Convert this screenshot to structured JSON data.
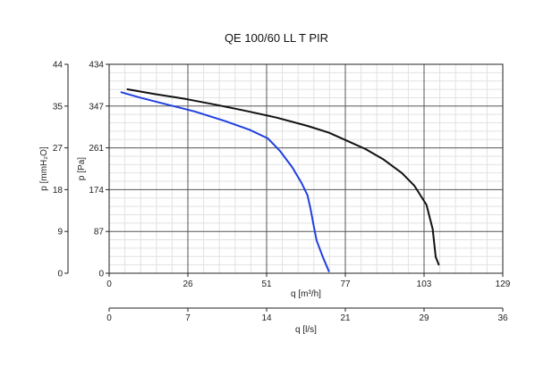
{
  "chart_data": {
    "type": "line",
    "title": "QE 100/60 LL T PIR",
    "x_axis_primary": {
      "label": "q [m³/h]",
      "ticks": [
        "0",
        "26",
        "51",
        "77",
        "103",
        "129"
      ],
      "range": [
        0,
        129
      ]
    },
    "x_axis_secondary": {
      "label": "q [l/s]",
      "ticks": [
        "0",
        "7",
        "14",
        "21",
        "29",
        "36"
      ],
      "range": [
        0,
        36
      ]
    },
    "y_axis_primary": {
      "label": "p [Pa]",
      "ticks": [
        "0",
        "87",
        "174",
        "261",
        "347",
        "434"
      ],
      "range": [
        0,
        434
      ]
    },
    "y_axis_secondary": {
      "label": "p [mmH₂O]",
      "ticks": [
        "0",
        "9",
        "18",
        "27",
        "35",
        "44"
      ],
      "range": [
        0,
        44
      ]
    },
    "grid": true,
    "minor_grid": true,
    "series": [
      {
        "color": "#111111",
        "points": [
          [
            6,
            382
          ],
          [
            15,
            372
          ],
          [
            25,
            362
          ],
          [
            35,
            350
          ],
          [
            45,
            337
          ],
          [
            55,
            323
          ],
          [
            65,
            306
          ],
          [
            72,
            292
          ],
          [
            78,
            275
          ],
          [
            84,
            258
          ],
          [
            90,
            236
          ],
          [
            96,
            208
          ],
          [
            100,
            182
          ],
          [
            104,
            142
          ],
          [
            106,
            92
          ],
          [
            107,
            34
          ],
          [
            108,
            18
          ]
        ]
      },
      {
        "color": "#2040e0",
        "points": [
          [
            4,
            376
          ],
          [
            10,
            365
          ],
          [
            18,
            352
          ],
          [
            28,
            336
          ],
          [
            38,
            316
          ],
          [
            46,
            298
          ],
          [
            52,
            280
          ],
          [
            56,
            254
          ],
          [
            60,
            220
          ],
          [
            63,
            188
          ],
          [
            65,
            162
          ],
          [
            66,
            134
          ],
          [
            67,
            100
          ],
          [
            68,
            68
          ],
          [
            70,
            34
          ],
          [
            72,
            4
          ]
        ]
      }
    ]
  }
}
